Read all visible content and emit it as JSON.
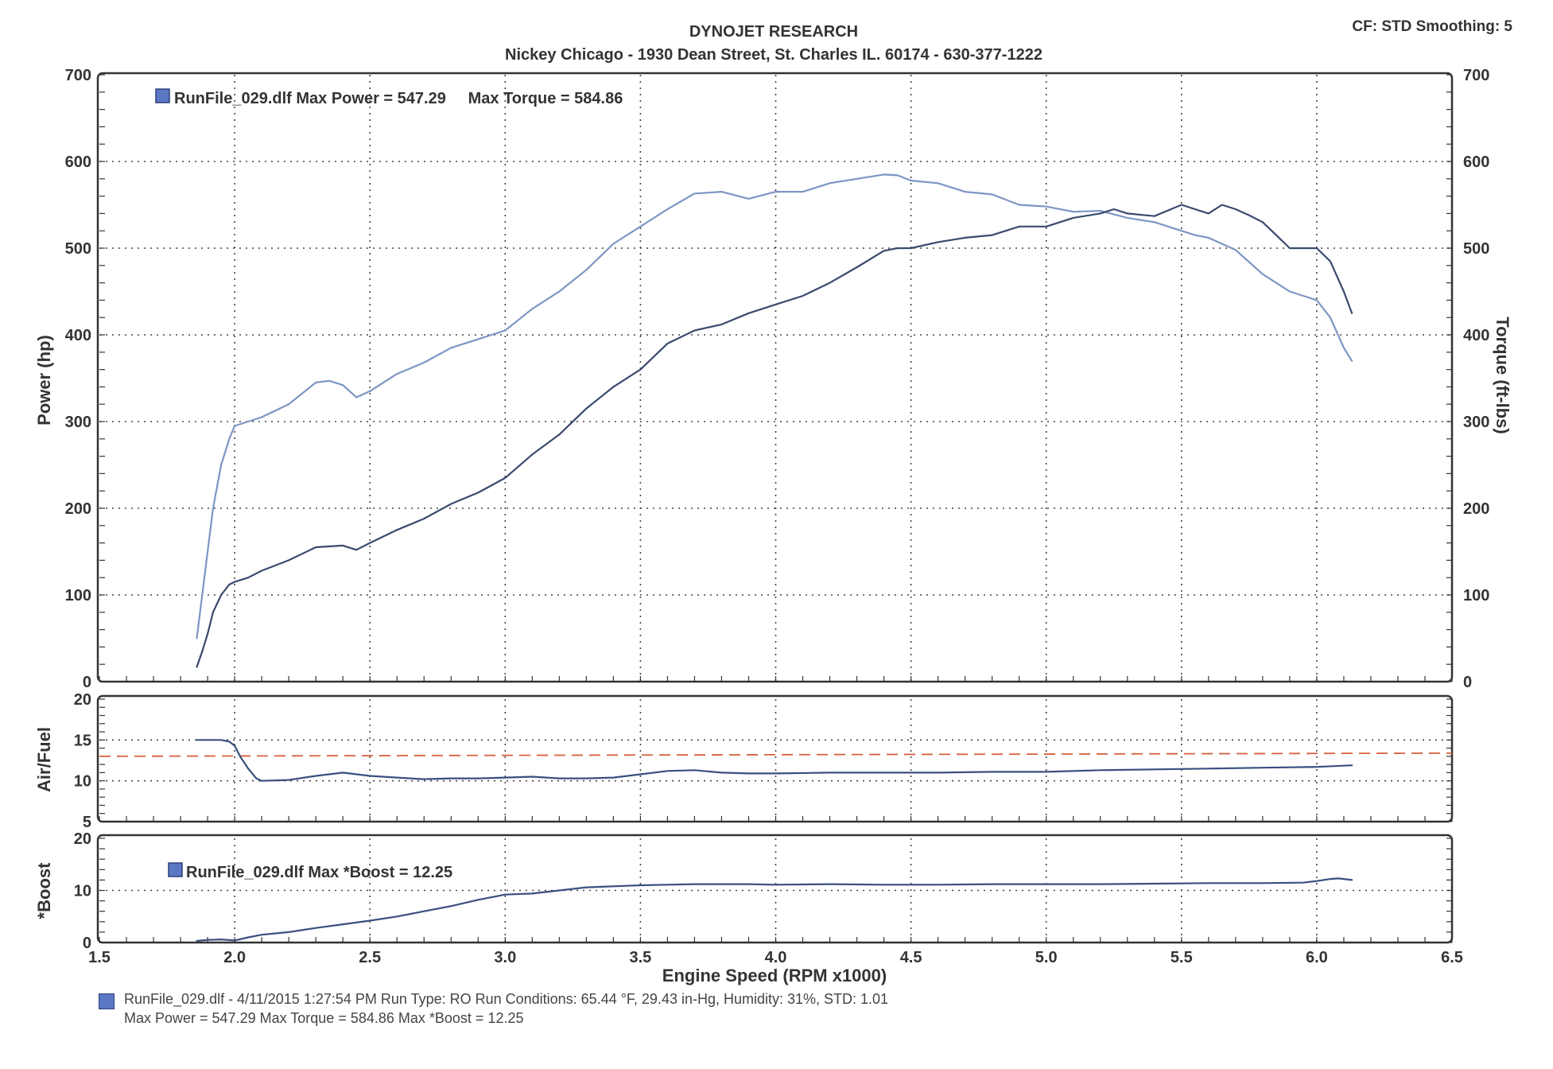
{
  "header": {
    "title": "DYNOJET RESEARCH",
    "subtitle": "Nickey Chicago - 1930 Dean Street, St. Charles IL. 60174 - 630-377-1222",
    "settings": "CF: STD  Smoothing: 5"
  },
  "colors": {
    "power_line": "#3a4a6e",
    "torque_line": "#7e95c4",
    "afr_line": "#3a4f80",
    "afr_target_line": "#d8603c",
    "boost_line": "#3a4f80",
    "grid": "#444444",
    "legend_marker": "#5a78c4"
  },
  "chart_data": [
    {
      "id": "power_torque",
      "type": "line",
      "ylabel": "Power (hp)",
      "y2label": "Torque (ft-lbs)",
      "ylim": [
        0,
        700
      ],
      "y2lim": [
        0,
        700
      ],
      "xlim": [
        1.5,
        6.5
      ],
      "yticks": [
        0,
        100,
        200,
        300,
        400,
        500,
        600,
        700
      ],
      "grid": true,
      "legend": "RunFile_029.dlf Max Power = 547.29     Max Torque = 584.86",
      "series": [
        {
          "key": "power",
          "x": [
            1.86,
            1.88,
            1.9,
            1.92,
            1.95,
            1.98,
            2.0,
            2.05,
            2.1,
            2.2,
            2.3,
            2.4,
            2.45,
            2.5,
            2.6,
            2.7,
            2.8,
            2.9,
            3.0,
            3.1,
            3.2,
            3.3,
            3.4,
            3.5,
            3.6,
            3.7,
            3.8,
            3.9,
            4.0,
            4.1,
            4.2,
            4.3,
            4.4,
            4.45,
            4.5,
            4.6,
            4.7,
            4.8,
            4.9,
            5.0,
            5.1,
            5.2,
            5.25,
            5.3,
            5.4,
            5.5,
            5.55,
            5.6,
            5.65,
            5.7,
            5.75,
            5.8,
            5.85,
            5.9,
            6.0,
            6.05,
            6.1,
            6.13
          ],
          "y": [
            17,
            35,
            55,
            80,
            100,
            112,
            115,
            120,
            128,
            140,
            155,
            157,
            152,
            160,
            175,
            188,
            205,
            218,
            235,
            262,
            285,
            315,
            340,
            360,
            390,
            405,
            412,
            425,
            435,
            445,
            460,
            478,
            497,
            500,
            500,
            507,
            512,
            515,
            525,
            525,
            535,
            540,
            545,
            540,
            537,
            550,
            545,
            540,
            550,
            545,
            538,
            530,
            515,
            500,
            500,
            485,
            450,
            425
          ]
        },
        {
          "key": "torque",
          "x": [
            1.86,
            1.88,
            1.9,
            1.92,
            1.95,
            1.98,
            2.0,
            2.05,
            2.1,
            2.2,
            2.3,
            2.35,
            2.4,
            2.45,
            2.5,
            2.6,
            2.7,
            2.8,
            2.9,
            3.0,
            3.1,
            3.2,
            3.3,
            3.4,
            3.5,
            3.6,
            3.7,
            3.8,
            3.9,
            4.0,
            4.1,
            4.2,
            4.3,
            4.4,
            4.45,
            4.5,
            4.6,
            4.7,
            4.8,
            4.9,
            5.0,
            5.1,
            5.2,
            5.3,
            5.4,
            5.5,
            5.55,
            5.6,
            5.7,
            5.8,
            5.9,
            6.0,
            6.05,
            6.1,
            6.13
          ],
          "y": [
            50,
            100,
            150,
            200,
            250,
            280,
            295,
            300,
            305,
            320,
            345,
            347,
            342,
            328,
            335,
            355,
            368,
            385,
            395,
            405,
            430,
            450,
            475,
            505,
            525,
            545,
            563,
            565,
            557,
            565,
            565,
            575,
            580,
            585,
            584,
            578,
            575,
            565,
            562,
            550,
            548,
            542,
            543,
            535,
            530,
            520,
            515,
            512,
            498,
            470,
            450,
            440,
            420,
            385,
            370
          ]
        }
      ]
    },
    {
      "id": "air_fuel",
      "type": "line",
      "ylabel": "Air/Fuel",
      "ylim": [
        5,
        20
      ],
      "xlim": [
        1.5,
        6.5
      ],
      "yticks": [
        5,
        10,
        15,
        20
      ],
      "grid": true,
      "target": 13.0,
      "series": [
        {
          "key": "afr",
          "x": [
            1.86,
            1.9,
            1.95,
            1.98,
            2.0,
            2.02,
            2.05,
            2.08,
            2.1,
            2.2,
            2.3,
            2.4,
            2.5,
            2.6,
            2.7,
            2.8,
            2.9,
            3.0,
            3.1,
            3.2,
            3.3,
            3.4,
            3.5,
            3.6,
            3.7,
            3.8,
            3.9,
            4.0,
            4.2,
            4.4,
            4.6,
            4.8,
            5.0,
            5.2,
            5.4,
            5.6,
            5.8,
            6.0,
            6.13
          ],
          "y": [
            15,
            15,
            15,
            14.8,
            14.3,
            13,
            11.5,
            10.3,
            10.0,
            10.1,
            10.6,
            11.0,
            10.6,
            10.4,
            10.2,
            10.3,
            10.3,
            10.4,
            10.5,
            10.3,
            10.3,
            10.4,
            10.8,
            11.2,
            11.3,
            11.0,
            10.9,
            10.9,
            11.0,
            11.0,
            11.0,
            11.1,
            11.1,
            11.3,
            11.4,
            11.5,
            11.6,
            11.7,
            11.9
          ]
        }
      ]
    },
    {
      "id": "boost",
      "type": "line",
      "ylabel": "*Boost",
      "ylim": [
        0,
        20
      ],
      "xlim": [
        1.5,
        6.5
      ],
      "yticks": [
        0,
        10,
        20
      ],
      "xticks": [
        1.5,
        2.0,
        2.5,
        3.0,
        3.5,
        4.0,
        4.5,
        5.0,
        5.5,
        6.0,
        6.5
      ],
      "xlabel": "Engine Speed (RPM x1000)",
      "grid": true,
      "legend": "RunFile_029.dlf Max *Boost = 12.25",
      "series": [
        {
          "key": "boost",
          "x": [
            1.86,
            1.9,
            1.95,
            2.0,
            2.05,
            2.1,
            2.2,
            2.3,
            2.4,
            2.5,
            2.6,
            2.7,
            2.8,
            2.9,
            3.0,
            3.1,
            3.2,
            3.3,
            3.4,
            3.5,
            3.6,
            3.7,
            3.8,
            3.9,
            4.0,
            4.2,
            4.4,
            4.6,
            4.8,
            5.0,
            5.2,
            5.4,
            5.6,
            5.8,
            5.95,
            6.0,
            6.05,
            6.08,
            6.1,
            6.13
          ],
          "y": [
            0.3,
            0.5,
            0.6,
            0.4,
            1.0,
            1.5,
            2.0,
            2.8,
            3.5,
            4.2,
            5.0,
            6.0,
            7.0,
            8.2,
            9.2,
            9.4,
            10.0,
            10.6,
            10.8,
            11.0,
            11.1,
            11.2,
            11.2,
            11.2,
            11.1,
            11.2,
            11.1,
            11.1,
            11.2,
            11.2,
            11.2,
            11.3,
            11.4,
            11.4,
            11.5,
            11.8,
            12.2,
            12.3,
            12.2,
            12.0
          ]
        }
      ]
    }
  ],
  "footer": {
    "line1": "RunFile_029.dlf - 4/11/2015 1:27:54 PM  Run Type: RO  Run Conditions: 65.44 °F, 29.43 in-Hg,  Humidity:  31%, STD: 1.01",
    "line2": "Max Power = 547.29  Max Torque = 584.86  Max *Boost = 12.25"
  }
}
